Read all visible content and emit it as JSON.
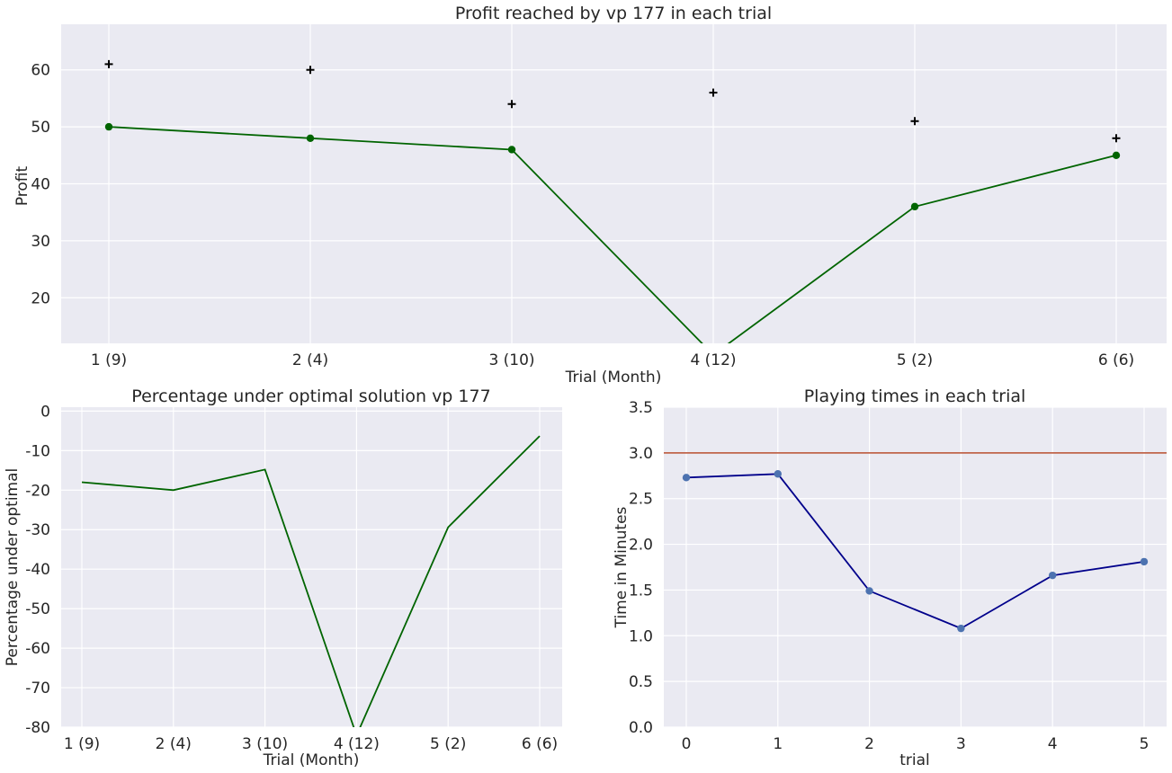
{
  "chart_data": [
    {
      "type": "line",
      "title": "Profit reached by vp 177 in each trial",
      "xlabel": "Trial (Month)",
      "ylabel": "Profit",
      "categories": [
        "1 (9)",
        "2 (4)",
        "3 (10)",
        "4 (12)",
        "5 (2)",
        "6 (6)"
      ],
      "ylim": [
        12,
        68
      ],
      "yticks": [
        20,
        30,
        40,
        50,
        60
      ],
      "grid": true,
      "series": [
        {
          "values": [
            50,
            48,
            46,
            10,
            36,
            45
          ],
          "color": "#006400",
          "marker": "circle"
        },
        {
          "values": [
            61,
            60,
            54,
            56,
            51,
            48
          ],
          "color": "#000000",
          "marker": "plus",
          "line": false
        }
      ]
    },
    {
      "type": "line",
      "title": "Percentage under optimal solution vp 177",
      "xlabel": "Trial (Month)",
      "ylabel": "Percentage under optimal",
      "categories": [
        "1 (9)",
        "2 (4)",
        "3 (10)",
        "4 (12)",
        "5 (2)",
        "6 (6)"
      ],
      "ylim": [
        -80,
        1
      ],
      "yticks": [
        0,
        -10,
        -20,
        -30,
        -40,
        -50,
        -60,
        -70,
        -80
      ],
      "grid": true,
      "series": [
        {
          "values": [
            -18.0,
            -20.0,
            -14.8,
            -82.1,
            -29.4,
            -6.3
          ],
          "color": "#006400"
        }
      ]
    },
    {
      "type": "line",
      "title": "Playing times in each trial",
      "xlabel": "trial",
      "ylabel": "Time in Minutes",
      "x": [
        0,
        1,
        2,
        3,
        4,
        5
      ],
      "ylim": [
        0,
        3.5
      ],
      "yticks": [
        "0.0",
        "0.5",
        "1.0",
        "1.5",
        "2.0",
        "2.5",
        "3.0",
        "3.5"
      ],
      "grid": true,
      "reference_line": {
        "y": 3.0,
        "color": "#c0654b"
      },
      "series": [
        {
          "values": [
            2.73,
            2.77,
            1.49,
            1.08,
            1.66,
            1.81
          ],
          "color": "#00008b",
          "marker_color": "#4c72b0"
        }
      ]
    }
  ]
}
